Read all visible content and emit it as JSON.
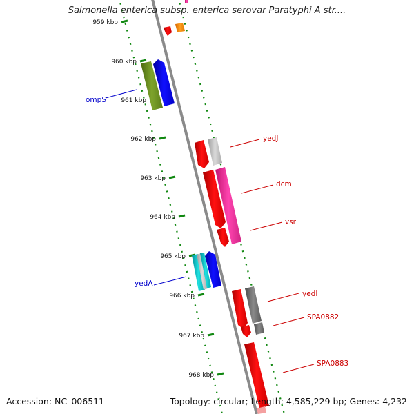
{
  "title": "Salmonella enterica subsp. enterica serovar Paratyphi A str....",
  "footer": {
    "accession": "Accession: NC_006511",
    "summary": "Topology: circular; Length: 4,585,229 bp; Genes: 4,232"
  },
  "ticks": [
    {
      "label": "959 kbp"
    },
    {
      "label": "960 kbp"
    },
    {
      "label": "961 kbp"
    },
    {
      "label": "962 kbp"
    },
    {
      "label": "963 kbp"
    },
    {
      "label": "964 kbp"
    },
    {
      "label": "965 kbp"
    },
    {
      "label": "966 kbp"
    },
    {
      "label": "967 kbp"
    },
    {
      "label": "968 kbp"
    }
  ],
  "gene_labels": [
    {
      "text": "ompS",
      "color": "#0000cc"
    },
    {
      "text": "yedJ",
      "color": "#cc0000"
    },
    {
      "text": "dcm",
      "color": "#cc0000"
    },
    {
      "text": "vsr",
      "color": "#cc0000"
    },
    {
      "text": "yedA",
      "color": "#0000cc"
    },
    {
      "text": "yedI",
      "color": "#cc0000"
    },
    {
      "text": "SPA0882",
      "color": "#cc0000"
    },
    {
      "text": "SPA0883",
      "color": "#cc0000"
    }
  ],
  "colors": {
    "backbone": "#8a8a8a",
    "tick_green": "#118811",
    "red": "#ff0000",
    "pink": "#ff33aa",
    "blue": "#0000ee",
    "olive": "#6b8e23",
    "cyan": "#00cccc",
    "orange": "#ff8800",
    "light_gray": "#c0c0c0",
    "gray": "#707070"
  }
}
